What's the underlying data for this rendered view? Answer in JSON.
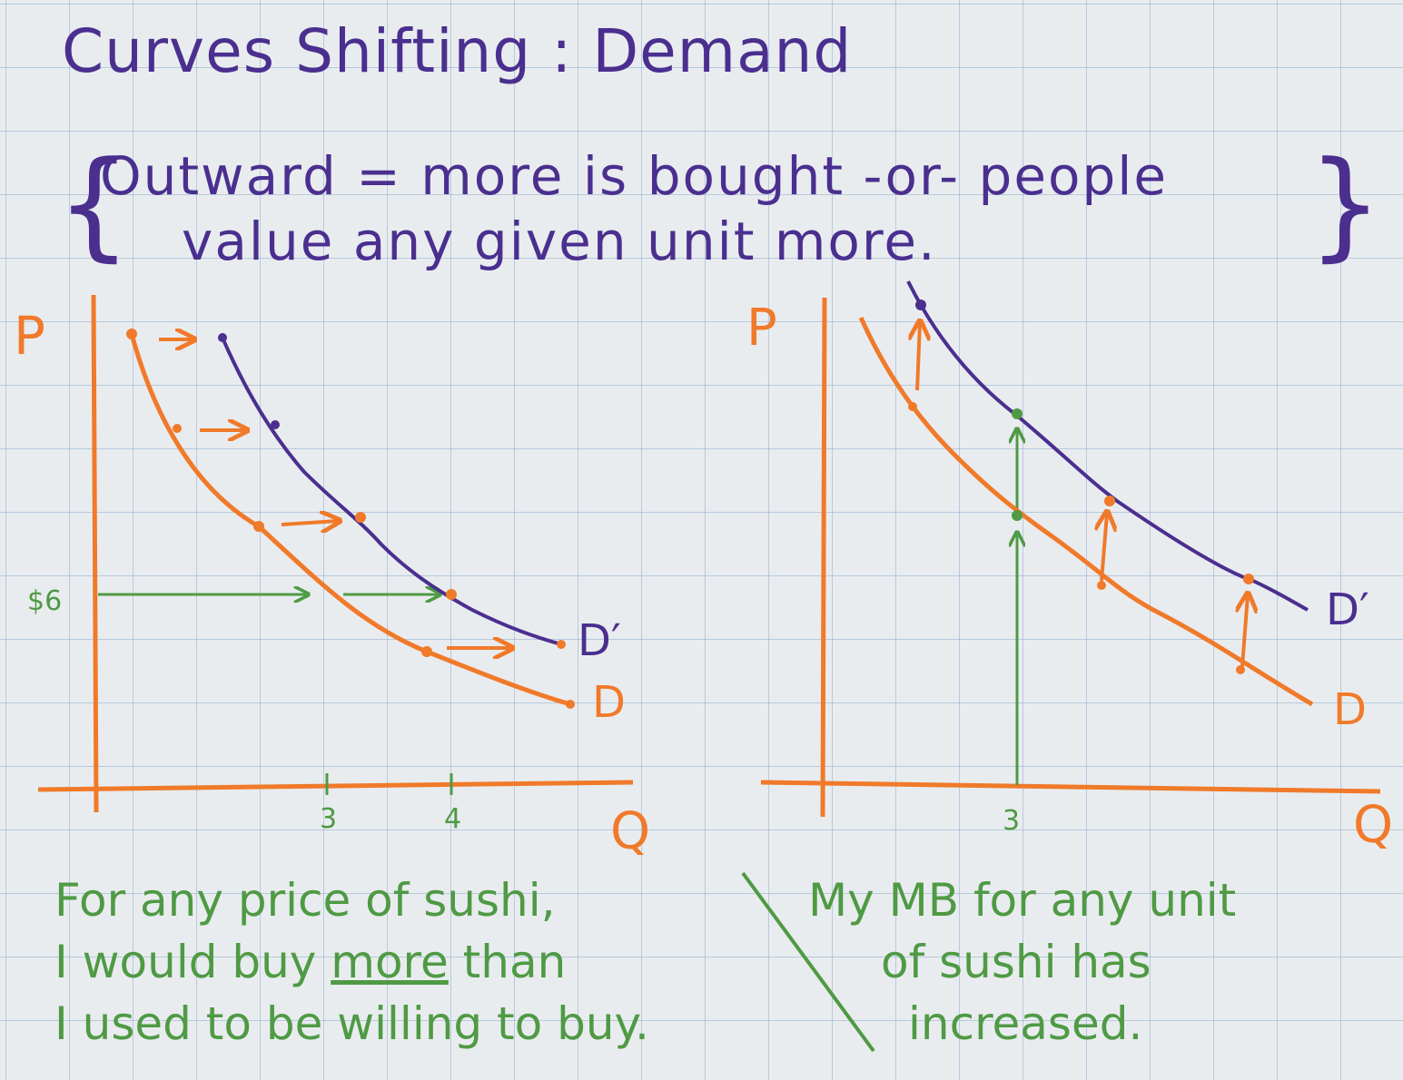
{
  "title": "Curves Shifting : Demand",
  "definition": {
    "brace_open": "{",
    "line1": "Outward = more is bought -or- people",
    "line2": "value any given unit more.",
    "brace_close": "}"
  },
  "left_graph": {
    "y_axis_label": "P",
    "x_axis_label": "Q",
    "price_tick": "$6",
    "x_ticks": [
      "3",
      "4"
    ],
    "curve_shifted_label": "D′",
    "curve_original_label": "D"
  },
  "right_graph": {
    "y_axis_label": "P",
    "x_axis_label": "Q",
    "x_ticks": [
      "3"
    ],
    "curve_shifted_label": "D′",
    "curve_original_label": "D"
  },
  "caption_left": {
    "line1": "For any price of sushi,",
    "line2_before": "I would buy ",
    "line2_underlined": "more",
    "line2_after": " than",
    "line3": "I used to be willing to buy."
  },
  "caption_right": {
    "line1": "My MB for any unit",
    "line2": "of sushi has",
    "line3": "increased."
  },
  "colors": {
    "purple": "#4a2f8f",
    "orange": "#f07a2a",
    "green": "#4f9a44"
  }
}
